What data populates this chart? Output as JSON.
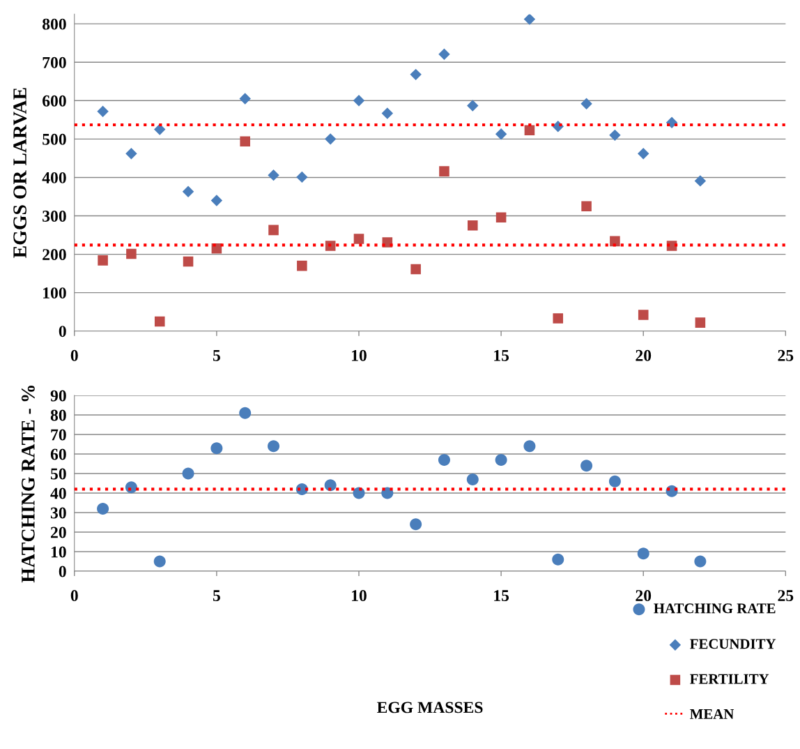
{
  "chart_data": [
    {
      "type": "scatter",
      "ylabel": "EGGS OR LARVAE",
      "xlim": [
        0,
        25
      ],
      "xticks": [
        0,
        5,
        10,
        15,
        20,
        25
      ],
      "ylim": [
        0,
        825
      ],
      "yticks": [
        0,
        100,
        200,
        300,
        400,
        500,
        600,
        700,
        800
      ],
      "grid": "y",
      "legend": "bottom right",
      "x": [
        1,
        2,
        3,
        4,
        5,
        6,
        7,
        8,
        9,
        10,
        11,
        12,
        13,
        14,
        15,
        16,
        17,
        18,
        19,
        20,
        21,
        22
      ],
      "series": [
        {
          "name": "FECUNDITY",
          "color": "#4a7ebb",
          "marker": "diamond",
          "values": [
            572,
            462,
            525,
            363,
            340,
            605,
            406,
            401,
            500,
            600,
            567,
            668,
            721,
            587,
            513,
            812,
            533,
            592,
            510,
            462,
            543,
            391
          ]
        },
        {
          "name": "FERTILITY",
          "color": "#be4b48",
          "marker": "square",
          "values": [
            184,
            201,
            25,
            181,
            215,
            494,
            263,
            170,
            222,
            240,
            231,
            161,
            416,
            275,
            296,
            523,
            33,
            325,
            234,
            42,
            222,
            22
          ]
        }
      ],
      "ref_lines": [
        {
          "axis": "y",
          "value": 537,
          "label": "MEAN",
          "color": "#ff0000",
          "line_style": "dotted"
        },
        {
          "axis": "y",
          "value": 224,
          "color": "#ff0000",
          "line_style": "dotted"
        }
      ]
    },
    {
      "type": "scatter",
      "ylabel": "HATCHING RATE - %",
      "xlabel": "EGG MASSES",
      "xlim": [
        0,
        25
      ],
      "xticks": [
        0,
        5,
        10,
        15,
        20,
        25
      ],
      "ylim": [
        0,
        90
      ],
      "yticks": [
        0,
        10,
        20,
        30,
        40,
        50,
        60,
        70,
        80,
        90
      ],
      "grid": "y",
      "legend": "bottom right",
      "x": [
        1,
        2,
        3,
        4,
        5,
        6,
        7,
        8,
        9,
        10,
        11,
        12,
        13,
        14,
        15,
        16,
        17,
        18,
        19,
        20,
        21,
        22
      ],
      "series": [
        {
          "name": "HATCHING RATE",
          "color": "#4a7ebb",
          "marker": "circle",
          "values": [
            32,
            43,
            5,
            50,
            63,
            81,
            64,
            42,
            44,
            40,
            40,
            24,
            57,
            47,
            57,
            64,
            6,
            54,
            46,
            9,
            41,
            5
          ]
        }
      ],
      "ref_lines": [
        {
          "axis": "y",
          "value": 42,
          "color": "#ff0000",
          "line_style": "dotted"
        }
      ]
    }
  ]
}
